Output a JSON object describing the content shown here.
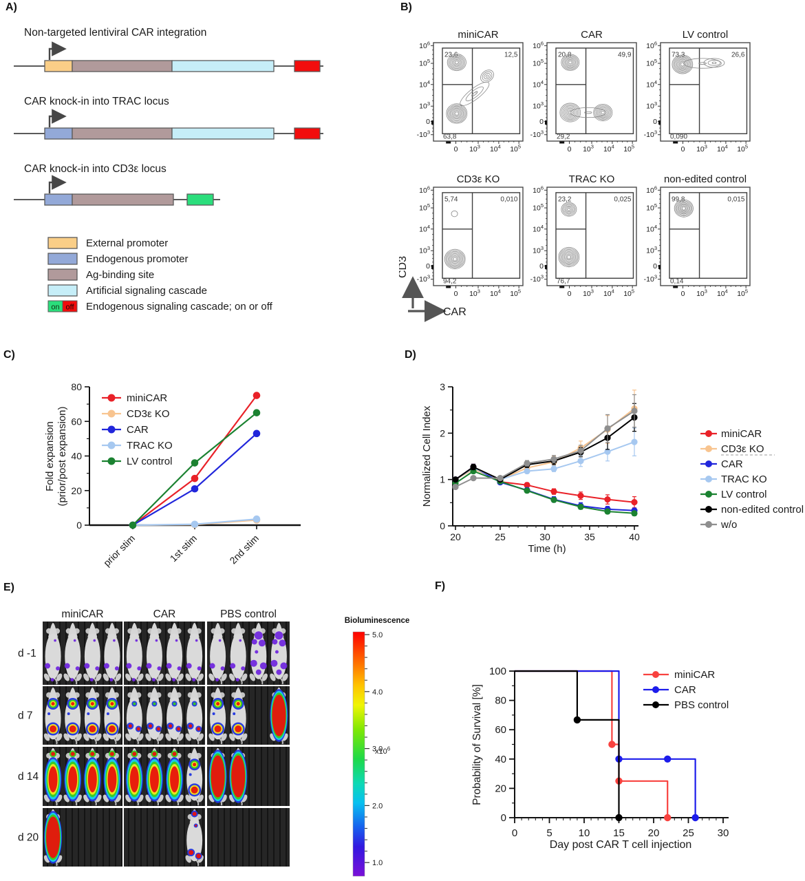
{
  "labels": {
    "a": "A)",
    "b": "B)",
    "c": "C)",
    "d": "D)",
    "e": "E)",
    "f": "F)"
  },
  "panel_a": {
    "colors": {
      "external": "#FACE87",
      "endogenous": "#93A9D8",
      "ag": "#B19A9B",
      "artificial": "#C6EEF8",
      "on": "#2BDE7C",
      "off": "#F20D0D"
    },
    "constructs": [
      {
        "title": "Non-targeted lentiviral CAR integration",
        "promoter": "external",
        "has_artificial": true,
        "end": "off"
      },
      {
        "title": "CAR knock-in into TRAC locus",
        "promoter": "endogenous",
        "has_artificial": true,
        "end": "off"
      },
      {
        "title": "CAR knock-in into CD3ε locus",
        "promoter": "endogenous",
        "has_artificial": false,
        "end": "on"
      }
    ],
    "legend": [
      {
        "type": "swatch",
        "color_key": "external",
        "label": "External promoter"
      },
      {
        "type": "swatch",
        "color_key": "endogenous",
        "label": "Endogenous promoter"
      },
      {
        "type": "swatch",
        "color_key": "ag",
        "label": "Ag-binding site"
      },
      {
        "type": "swatch",
        "color_key": "artificial",
        "label": "Artificial signaling cascade"
      },
      {
        "type": "onoff",
        "on": "on",
        "off": "off",
        "label": "Endogenous signaling cascade; on or off"
      }
    ]
  },
  "panel_b": {
    "y_axis": "CD3",
    "x_axis": "CAR",
    "y_ticks": [
      {
        "t": "10",
        "e": "6"
      },
      {
        "t": "10",
        "e": "5"
      },
      {
        "t": "10",
        "e": "4"
      },
      {
        "t": "10",
        "e": "3"
      },
      {
        "t": "0",
        "e": ""
      },
      {
        "t": "-10",
        "e": "3"
      }
    ],
    "x_ticks": [
      {
        "t": "0",
        "e": ""
      },
      {
        "t": "10",
        "e": "3"
      },
      {
        "t": "10",
        "e": "4"
      },
      {
        "t": "10",
        "e": "5"
      }
    ],
    "plots": [
      {
        "title": "miniCAR",
        "ul": "23,6",
        "ur": "12,5",
        "ll": "63,8"
      },
      {
        "title": "CAR",
        "ul": "20,8",
        "ur": "49,9",
        "ll": "29,2"
      },
      {
        "title": "LV control",
        "ul": "73,3",
        "ur": "26,6",
        "ll": "0,090"
      },
      {
        "title": "CD3ε KO",
        "ul": "5,74",
        "ur": "0,010",
        "ll": "94,2"
      },
      {
        "title": "TRAC KO",
        "ul": "23,2",
        "ur": "0,025",
        "ll": "76,7"
      },
      {
        "title": "non-edited control",
        "ul": "99,8",
        "ur": "0,015",
        "ll": "0,14"
      }
    ]
  },
  "chart_data": [
    {
      "id": "C",
      "type": "line",
      "categories": [
        "prior stim",
        "1st stim",
        "2nd stim"
      ],
      "series": [
        {
          "name": "miniCAR",
          "color": "#E92128",
          "values": [
            0,
            27,
            75
          ]
        },
        {
          "name": "CD3ε KO",
          "color": "#F8C48F",
          "values": [
            0,
            0.3,
            3
          ]
        },
        {
          "name": "CAR",
          "color": "#2126DB",
          "values": [
            0,
            21,
            53
          ]
        },
        {
          "name": "TRAC KO",
          "color": "#A6C8F0",
          "values": [
            0,
            0.5,
            3.5
          ]
        },
        {
          "name": "LV control",
          "color": "#1B8231",
          "values": [
            0,
            36,
            65
          ]
        }
      ],
      "ylabel_line1": "Fold expansion",
      "ylabel_line2": "(prior/post expansion)",
      "xlabel": "",
      "ylim": [
        0,
        80
      ],
      "yticks": [
        0,
        20,
        40,
        60,
        80
      ]
    },
    {
      "id": "D",
      "type": "line",
      "x": [
        20,
        22,
        25,
        28,
        31,
        34,
        37,
        40
      ],
      "series": [
        {
          "name": "miniCAR",
          "color": "#E92128",
          "values": [
            1.0,
            1.27,
            0.95,
            0.88,
            0.74,
            0.65,
            0.57,
            0.51
          ],
          "err": [
            0.03,
            0.06,
            0.04,
            0.05,
            0.06,
            0.08,
            0.1,
            0.12
          ]
        },
        {
          "name": "CD3ε KO",
          "color": "#F8C48F",
          "underline_dashed": true,
          "values": [
            1.0,
            1.22,
            1.0,
            1.25,
            1.38,
            1.68,
            2.08,
            2.53
          ],
          "err": [
            0.04,
            0.08,
            0.05,
            0.08,
            0.12,
            0.15,
            0.3,
            0.4
          ]
        },
        {
          "name": "CAR",
          "color": "#2126DB",
          "values": [
            1.0,
            1.27,
            0.94,
            0.77,
            0.57,
            0.43,
            0.36,
            0.33
          ],
          "err": [
            0.03,
            0.06,
            0.04,
            0.05,
            0.06,
            0.07,
            0.06,
            0.05
          ]
        },
        {
          "name": "TRAC KO",
          "color": "#A6C8F0",
          "values": [
            1.0,
            1.25,
            1.0,
            1.18,
            1.23,
            1.4,
            1.6,
            1.81
          ],
          "err": [
            0.03,
            0.07,
            0.04,
            0.05,
            0.06,
            0.12,
            0.2,
            0.3
          ]
        },
        {
          "name": "LV control",
          "color": "#1B8231",
          "values": [
            0.92,
            1.18,
            0.96,
            0.76,
            0.56,
            0.41,
            0.31,
            0.27
          ],
          "err": [
            0.03,
            0.05,
            0.03,
            0.04,
            0.04,
            0.05,
            0.05,
            0.05
          ]
        },
        {
          "name": "non-edited control",
          "color": "#000000",
          "values": [
            1.0,
            1.27,
            1.0,
            1.32,
            1.4,
            1.59,
            1.9,
            2.34
          ],
          "err": [
            0.02,
            0.06,
            0.04,
            0.06,
            0.08,
            0.1,
            0.25,
            0.3
          ]
        },
        {
          "name": "w/o",
          "color": "#8F8F8F",
          "values": [
            0.84,
            1.03,
            1.03,
            1.35,
            1.44,
            1.62,
            2.1,
            2.48
          ],
          "err": [
            0.02,
            0.04,
            0.03,
            0.06,
            0.08,
            0.12,
            0.3,
            0.35
          ]
        }
      ],
      "xlabel": "Time (h)",
      "ylabel": "Normalized Cell Index",
      "xlim": [
        20,
        40
      ],
      "ylim": [
        0,
        3
      ],
      "xticks": [
        20,
        25,
        30,
        35,
        40
      ],
      "yticks": [
        0,
        1,
        2,
        3
      ]
    },
    {
      "id": "F",
      "type": "step",
      "series": [
        {
          "name": "miniCAR",
          "color": "#F8423F",
          "steps": [
            [
              0,
              100
            ],
            [
              14,
              100
            ],
            [
              14,
              50
            ],
            [
              15,
              50
            ],
            [
              15,
              25
            ],
            [
              22,
              25
            ],
            [
              22,
              0
            ]
          ],
          "markers": [
            [
              14,
              50
            ],
            [
              15,
              25
            ],
            [
              22,
              0
            ]
          ]
        },
        {
          "name": "CAR",
          "color": "#1C1CEB",
          "steps": [
            [
              0,
              100
            ],
            [
              15,
              100
            ],
            [
              15,
              40
            ],
            [
              26,
              40
            ],
            [
              26,
              0
            ]
          ],
          "markers": [
            [
              15,
              40
            ],
            [
              22,
              40
            ],
            [
              26,
              0
            ]
          ]
        },
        {
          "name": "PBS control",
          "color": "#000000",
          "steps": [
            [
              0,
              100
            ],
            [
              9,
              100
            ],
            [
              9,
              66.7
            ],
            [
              15,
              66.7
            ],
            [
              15,
              0
            ]
          ],
          "markers": [
            [
              9,
              66.7
            ],
            [
              15,
              0
            ]
          ]
        }
      ],
      "xlabel": "Day post CAR T cell injection",
      "ylabel": "Probability of Survival [%]",
      "xlim": [
        0,
        30
      ],
      "ylim": [
        0,
        100
      ],
      "xticks": [
        0,
        5,
        10,
        15,
        20,
        25,
        30
      ],
      "yticks": [
        0,
        20,
        40,
        60,
        80,
        100
      ]
    }
  ],
  "panel_e": {
    "col_headers": [
      "miniCAR",
      "CAR",
      "PBS control"
    ],
    "row_labels": [
      "d -1",
      "d 7",
      "d 14",
      "d 20"
    ],
    "cells": [
      [
        [
          "clean",
          "clean",
          "clean",
          "clean"
        ],
        [
          "clean",
          "clean",
          "clean",
          "clean"
        ],
        [
          "clean",
          "clean",
          "pheavy",
          "pheavy"
        ]
      ],
      [
        [
          "mid",
          "mid",
          "mid",
          "mid"
        ],
        [
          "light",
          "light",
          "light",
          "light"
        ],
        [
          "mid",
          "mid",
          null,
          "full"
        ]
      ],
      [
        [
          "high",
          "high",
          "high",
          "high"
        ],
        [
          "high",
          "high",
          "high",
          "mid"
        ],
        [
          "full",
          "full",
          null,
          null
        ]
      ],
      [
        [
          "full",
          null,
          null,
          null
        ],
        [
          null,
          null,
          null,
          "spots"
        ],
        [
          null,
          null,
          null,
          null
        ]
      ]
    ],
    "colorbar": {
      "title": "Bioluminescence",
      "ticks": [
        "5.0",
        "4.0",
        "3.0",
        "2.0",
        "1.0"
      ],
      "multiplier_base": "x10",
      "multiplier_exp": "6"
    },
    "overlay_colors": {
      "red": "#E8130C",
      "yellow": "#F2E71E",
      "green": "#3ACC1C",
      "cyan": "#15D3E8",
      "blue": "#2135E0",
      "purple": "#7129DE"
    }
  }
}
